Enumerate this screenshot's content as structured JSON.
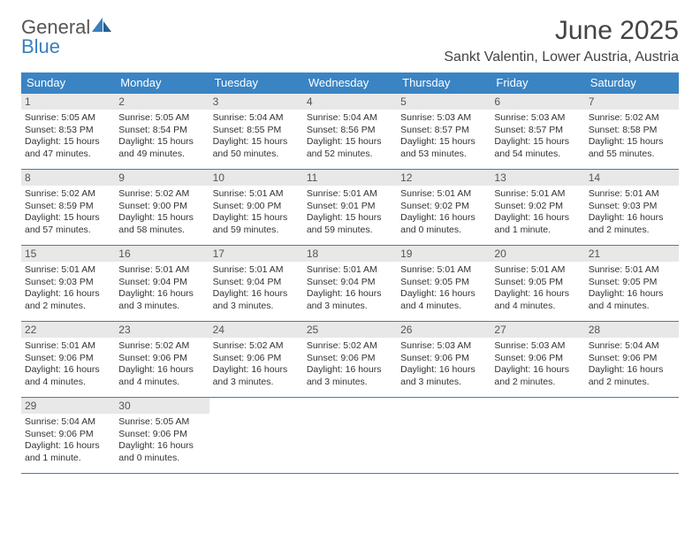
{
  "logo": {
    "word1": "General",
    "word2": "Blue"
  },
  "title": "June 2025",
  "subtitle": "Sankt Valentin, Lower Austria, Austria",
  "colors": {
    "header_bg": "#3a84c4",
    "header_text": "#ffffff",
    "border": "#3a7fbf",
    "daynum_bg": "#e8e8e8",
    "text": "#333333",
    "logo_gray": "#555555",
    "logo_blue": "#3a7fbf",
    "page_bg": "#ffffff"
  },
  "weekdays": [
    "Sunday",
    "Monday",
    "Tuesday",
    "Wednesday",
    "Thursday",
    "Friday",
    "Saturday"
  ],
  "days": [
    {
      "n": "1",
      "sr": "5:05 AM",
      "ss": "8:53 PM",
      "dl": "15 hours and 47 minutes."
    },
    {
      "n": "2",
      "sr": "5:05 AM",
      "ss": "8:54 PM",
      "dl": "15 hours and 49 minutes."
    },
    {
      "n": "3",
      "sr": "5:04 AM",
      "ss": "8:55 PM",
      "dl": "15 hours and 50 minutes."
    },
    {
      "n": "4",
      "sr": "5:04 AM",
      "ss": "8:56 PM",
      "dl": "15 hours and 52 minutes."
    },
    {
      "n": "5",
      "sr": "5:03 AM",
      "ss": "8:57 PM",
      "dl": "15 hours and 53 minutes."
    },
    {
      "n": "6",
      "sr": "5:03 AM",
      "ss": "8:57 PM",
      "dl": "15 hours and 54 minutes."
    },
    {
      "n": "7",
      "sr": "5:02 AM",
      "ss": "8:58 PM",
      "dl": "15 hours and 55 minutes."
    },
    {
      "n": "8",
      "sr": "5:02 AM",
      "ss": "8:59 PM",
      "dl": "15 hours and 57 minutes."
    },
    {
      "n": "9",
      "sr": "5:02 AM",
      "ss": "9:00 PM",
      "dl": "15 hours and 58 minutes."
    },
    {
      "n": "10",
      "sr": "5:01 AM",
      "ss": "9:00 PM",
      "dl": "15 hours and 59 minutes."
    },
    {
      "n": "11",
      "sr": "5:01 AM",
      "ss": "9:01 PM",
      "dl": "15 hours and 59 minutes."
    },
    {
      "n": "12",
      "sr": "5:01 AM",
      "ss": "9:02 PM",
      "dl": "16 hours and 0 minutes."
    },
    {
      "n": "13",
      "sr": "5:01 AM",
      "ss": "9:02 PM",
      "dl": "16 hours and 1 minute."
    },
    {
      "n": "14",
      "sr": "5:01 AM",
      "ss": "9:03 PM",
      "dl": "16 hours and 2 minutes."
    },
    {
      "n": "15",
      "sr": "5:01 AM",
      "ss": "9:03 PM",
      "dl": "16 hours and 2 minutes."
    },
    {
      "n": "16",
      "sr": "5:01 AM",
      "ss": "9:04 PM",
      "dl": "16 hours and 3 minutes."
    },
    {
      "n": "17",
      "sr": "5:01 AM",
      "ss": "9:04 PM",
      "dl": "16 hours and 3 minutes."
    },
    {
      "n": "18",
      "sr": "5:01 AM",
      "ss": "9:04 PM",
      "dl": "16 hours and 3 minutes."
    },
    {
      "n": "19",
      "sr": "5:01 AM",
      "ss": "9:05 PM",
      "dl": "16 hours and 4 minutes."
    },
    {
      "n": "20",
      "sr": "5:01 AM",
      "ss": "9:05 PM",
      "dl": "16 hours and 4 minutes."
    },
    {
      "n": "21",
      "sr": "5:01 AM",
      "ss": "9:05 PM",
      "dl": "16 hours and 4 minutes."
    },
    {
      "n": "22",
      "sr": "5:01 AM",
      "ss": "9:06 PM",
      "dl": "16 hours and 4 minutes."
    },
    {
      "n": "23",
      "sr": "5:02 AM",
      "ss": "9:06 PM",
      "dl": "16 hours and 4 minutes."
    },
    {
      "n": "24",
      "sr": "5:02 AM",
      "ss": "9:06 PM",
      "dl": "16 hours and 3 minutes."
    },
    {
      "n": "25",
      "sr": "5:02 AM",
      "ss": "9:06 PM",
      "dl": "16 hours and 3 minutes."
    },
    {
      "n": "26",
      "sr": "5:03 AM",
      "ss": "9:06 PM",
      "dl": "16 hours and 3 minutes."
    },
    {
      "n": "27",
      "sr": "5:03 AM",
      "ss": "9:06 PM",
      "dl": "16 hours and 2 minutes."
    },
    {
      "n": "28",
      "sr": "5:04 AM",
      "ss": "9:06 PM",
      "dl": "16 hours and 2 minutes."
    },
    {
      "n": "29",
      "sr": "5:04 AM",
      "ss": "9:06 PM",
      "dl": "16 hours and 1 minute."
    },
    {
      "n": "30",
      "sr": "5:05 AM",
      "ss": "9:06 PM",
      "dl": "16 hours and 0 minutes."
    }
  ],
  "labels": {
    "sunrise": "Sunrise:",
    "sunset": "Sunset:",
    "daylight": "Daylight:"
  }
}
